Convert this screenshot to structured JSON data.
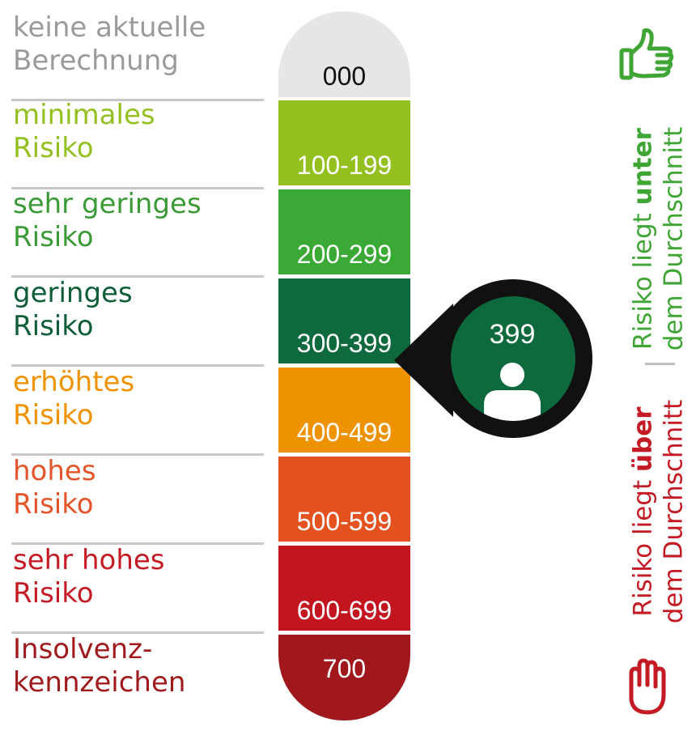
{
  "levels": [
    {
      "line1": "keine aktuelle",
      "line2": "Berechnung",
      "range": "000",
      "label_color": "#9a9a9a",
      "band_color": "#e6e6e6",
      "range_color": "#111111"
    },
    {
      "line1": "minimales",
      "line2": "Risiko",
      "range": "100-199",
      "label_color": "#93c01f",
      "band_color": "#93c01f",
      "range_color": "#ffffff"
    },
    {
      "line1": "sehr geringes",
      "line2": "Risiko",
      "range": "200-299",
      "label_color": "#3a9a36",
      "band_color": "#3aa936",
      "range_color": "#ffffff"
    },
    {
      "line1": "geringes",
      "line2": "Risiko",
      "range": "300-399",
      "label_color": "#0f5e38",
      "band_color": "#0e6a3c",
      "range_color": "#ffffff"
    },
    {
      "line1": "erhöhtes",
      "line2": "Risiko",
      "range": "400-499",
      "label_color": "#ef9200",
      "band_color": "#ef9200",
      "range_color": "#ffffff"
    },
    {
      "line1": "hohes",
      "line2": "Risiko",
      "range": "500-599",
      "label_color": "#e4542a",
      "band_color": "#e5511f",
      "range_color": "#ffffff"
    },
    {
      "line1": "sehr hohes",
      "line2": "Risiko",
      "range": "600-699",
      "label_color": "#c41a23",
      "band_color": "#c3151f",
      "range_color": "#ffffff"
    },
    {
      "line1": "Insolvenz-",
      "line2": "kennzeichen",
      "range": "700",
      "label_color": "#9e1a1d",
      "band_color": "#a0181b",
      "range_color": "#ffffff"
    }
  ],
  "marker": {
    "score": "399",
    "level_index": 3,
    "fill_color": "#0e6a3c",
    "border_color": "#111111",
    "icon": "person-icon"
  },
  "side_below": {
    "line1_pre": "Risiko liegt ",
    "line1_bold": "unter",
    "line2": "dem Durchschnitt",
    "color": "#3fa535",
    "icon": "thumbs-up-icon"
  },
  "side_above": {
    "line1_pre": "Risiko liegt ",
    "line1_bold": "über",
    "line2": "dem Durchschnitt",
    "color": "#c41a23",
    "icon": "stop-hand-icon"
  }
}
